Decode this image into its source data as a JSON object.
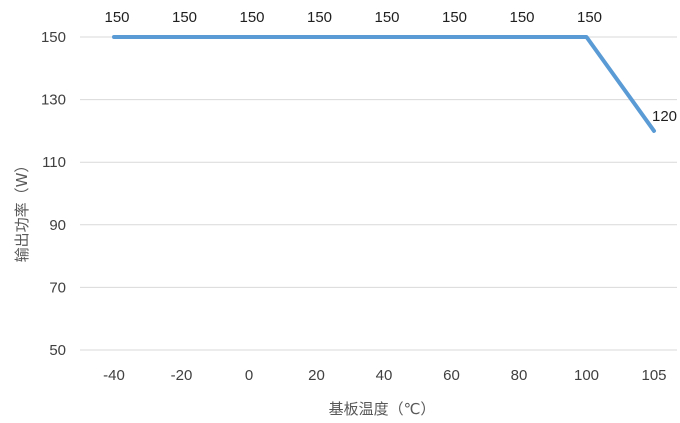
{
  "chart_data": {
    "type": "line",
    "x": [
      "-40",
      "-20",
      "0",
      "20",
      "40",
      "60",
      "80",
      "100",
      "105"
    ],
    "series": [
      {
        "values": [
          150,
          150,
          150,
          150,
          150,
          150,
          150,
          150,
          120
        ],
        "data_labels": [
          "150",
          "150",
          "150",
          "150",
          "150",
          "150",
          "150",
          "150",
          "120"
        ]
      }
    ],
    "xlabel": "基板温度（℃）",
    "ylabel": "输出功率（W）",
    "ylim": [
      50,
      150
    ],
    "yticks": [
      "50",
      "70",
      "90",
      "110",
      "130",
      "150"
    ],
    "grid": "horizontal",
    "legend": "none",
    "line_color": "#5b9bd5"
  }
}
